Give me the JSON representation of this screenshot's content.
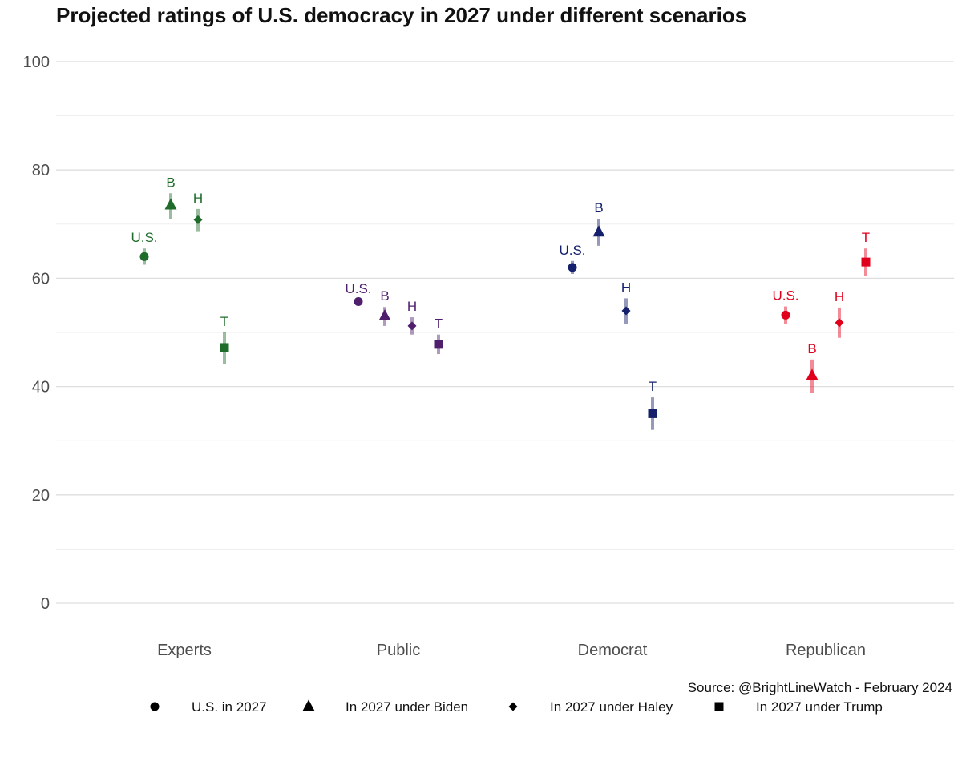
{
  "chart_data": {
    "type": "scatter",
    "title": "Projected ratings of U.S. democracy in 2027 under different scenarios",
    "source": "Source: @BrightLineWatch - February 2024",
    "ylim": [
      0,
      100
    ],
    "yticks": [
      0,
      20,
      40,
      60,
      80,
      100
    ],
    "grid": true,
    "legend_position": "bottom",
    "categories": [
      "Experts",
      "Public",
      "Democrat",
      "Republican"
    ],
    "category_colors": [
      "#1e6b2a",
      "#4f1f6e",
      "#14206b",
      "#e0001b"
    ],
    "series": [
      {
        "name": "U.S. in 2027",
        "label": "U.S.",
        "shape": "circle",
        "values": [
          64.0,
          55.7,
          62.0,
          53.2
        ],
        "lower": [
          62.5,
          55.3,
          60.8,
          51.6
        ],
        "upper": [
          65.5,
          56.1,
          63.2,
          54.8
        ]
      },
      {
        "name": "In 2027 under Biden",
        "label": "B",
        "shape": "triangle",
        "values": [
          73.5,
          53.0,
          68.5,
          42.0
        ],
        "lower": [
          71.0,
          51.2,
          66.0,
          38.8
        ],
        "upper": [
          75.7,
          54.7,
          71.0,
          45.0
        ]
      },
      {
        "name": "In 2027 under Haley",
        "label": "H",
        "shape": "diamond",
        "values": [
          70.8,
          51.2,
          54.0,
          51.8
        ],
        "lower": [
          68.7,
          49.6,
          51.6,
          49.0
        ],
        "upper": [
          72.8,
          52.8,
          56.3,
          54.6
        ]
      },
      {
        "name": "In 2027 under Trump",
        "label": "T",
        "shape": "square",
        "values": [
          47.2,
          47.8,
          35.0,
          63.0
        ],
        "lower": [
          44.2,
          46.0,
          32.0,
          60.5
        ],
        "upper": [
          50.0,
          49.6,
          38.0,
          65.5
        ]
      }
    ]
  }
}
